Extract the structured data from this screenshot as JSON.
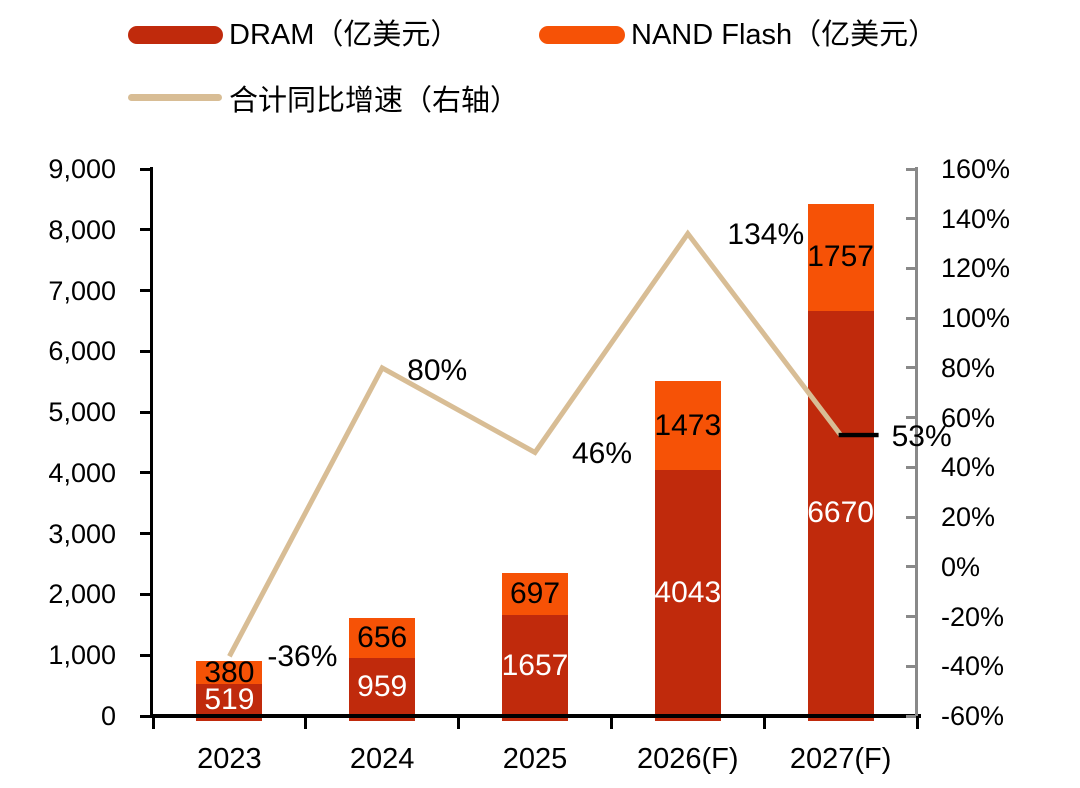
{
  "chart_data": {
    "type": "bar",
    "subtype": "stacked-bar-with-line",
    "categories": [
      "2023",
      "2024",
      "2025",
      "2026(F)",
      "2027(F)"
    ],
    "bar_series": [
      {
        "name": "DRAM（亿美元）",
        "color": "#C02A0C",
        "label_color": "#FFFFFF",
        "values": [
          519,
          959,
          1657,
          4043,
          6670
        ]
      },
      {
        "name": "NAND Flash（亿美元）",
        "color": "#F65206",
        "label_color": "#000000",
        "values": [
          380,
          656,
          697,
          1473,
          1757
        ]
      }
    ],
    "line_series": {
      "name": "合计同比增速（右轴）",
      "color": "#D8BD95",
      "axis": "right",
      "values_percent": [
        -36,
        80,
        46,
        134,
        53
      ],
      "point_labels": [
        "-36%",
        "80%",
        "46%",
        "134%",
        "53%"
      ],
      "last_point_marker": "black-dash",
      "marker_color": "#000000"
    },
    "left_axis": {
      "min": 0,
      "max": 9000,
      "step": 1000,
      "tick_labels": [
        "9,000",
        "8,000",
        "7,000",
        "6,000",
        "5,000",
        "4,000",
        "3,000",
        "2,000",
        "1,000",
        "0"
      ]
    },
    "right_axis": {
      "min": -60,
      "max": 160,
      "step": 20,
      "line_color": "#898989",
      "tick_labels": [
        "160%",
        "140%",
        "120%",
        "100%",
        "80%",
        "60%",
        "40%",
        "20%",
        "0%",
        "-20%",
        "-40%",
        "-60%"
      ]
    },
    "legend": [
      {
        "label": "DRAM（亿美元）",
        "swatch": "bar",
        "color": "#C02A0C"
      },
      {
        "label": "NAND Flash（亿美元）",
        "swatch": "bar",
        "color": "#F65206"
      },
      {
        "label": "合计同比增速（右轴）",
        "swatch": "line",
        "color": "#D8BD95"
      }
    ],
    "grid": false,
    "legend_position": "top-left"
  }
}
